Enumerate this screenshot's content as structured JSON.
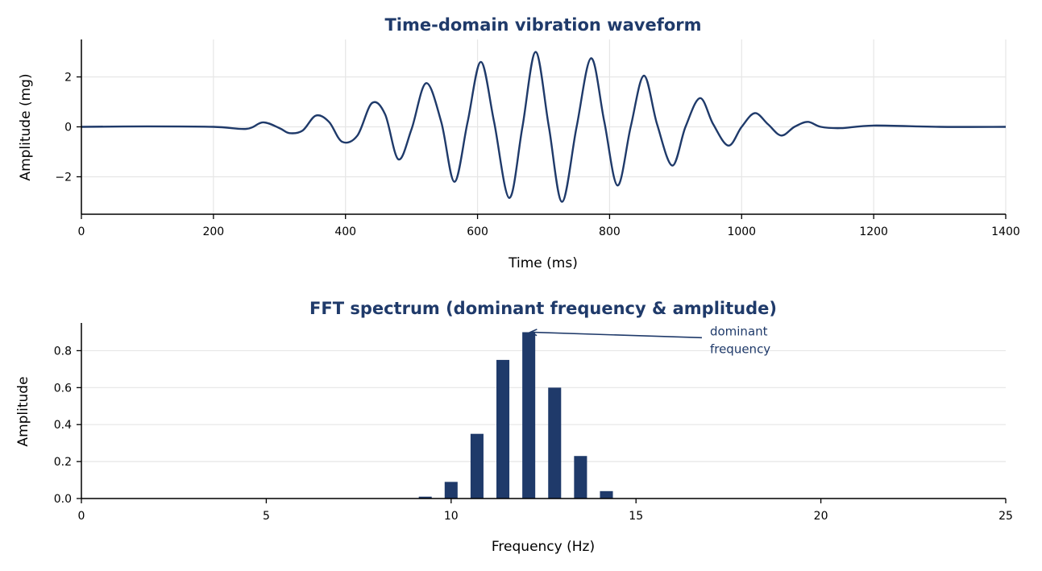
{
  "colors": {
    "primary": "#1f3a6a"
  },
  "chart_data": [
    {
      "type": "line",
      "title": "Time-domain vibration waveform",
      "xlabel": "Time (ms)",
      "ylabel": "Amplitude (mg)",
      "xlim": [
        0,
        1400
      ],
      "ylim": [
        -3.5,
        3.5
      ],
      "xticks": [
        0,
        200,
        400,
        600,
        800,
        1000,
        1200,
        1400
      ],
      "yticks": [
        -2,
        0,
        2
      ],
      "xtick_labels": [
        "0",
        "200",
        "400",
        "600",
        "800",
        "1000",
        "1200",
        "1400"
      ],
      "ytick_labels": [
        "−2",
        "0",
        "2"
      ],
      "grid": true,
      "series": [
        {
          "x": [
            0,
            100,
            200,
            250,
            275,
            300,
            315,
            335,
            355,
            375,
            395,
            418,
            440,
            460,
            480,
            500,
            522,
            545,
            565,
            585,
            605,
            625,
            648,
            668,
            688,
            708,
            728,
            750,
            772,
            792,
            812,
            832,
            852,
            872,
            895,
            915,
            937,
            957,
            980,
            1000,
            1020,
            1040,
            1060,
            1080,
            1100,
            1120,
            1150,
            1200,
            1300,
            1400
          ],
          "y": [
            0.0,
            0.02,
            0.0,
            -0.08,
            0.18,
            -0.05,
            -0.25,
            -0.15,
            0.45,
            0.2,
            -0.6,
            -0.35,
            0.95,
            0.5,
            -1.3,
            -0.1,
            1.75,
            0.2,
            -2.2,
            0.2,
            2.6,
            0.2,
            -2.85,
            0.0,
            3.0,
            0.0,
            -3.0,
            0.0,
            2.75,
            0.2,
            -2.35,
            0.0,
            2.05,
            0.1,
            -1.55,
            0.0,
            1.15,
            0.1,
            -0.75,
            0.0,
            0.55,
            0.1,
            -0.35,
            0.0,
            0.2,
            0.0,
            -0.05,
            0.05,
            0.0,
            0.0
          ]
        }
      ]
    },
    {
      "type": "bar",
      "title": "FFT spectrum  (dominant frequency & amplitude)",
      "xlabel": "Frequency (Hz)",
      "ylabel": "Amplitude",
      "xlim": [
        0,
        25
      ],
      "ylim": [
        0,
        0.95
      ],
      "xticks": [
        0,
        5,
        10,
        15,
        20,
        25
      ],
      "yticks": [
        0.0,
        0.2,
        0.4,
        0.6,
        0.8
      ],
      "xtick_labels": [
        "0",
        "5",
        "10",
        "15",
        "20",
        "25"
      ],
      "ytick_labels": [
        "0.0",
        "0.2",
        "0.4",
        "0.6",
        "0.8"
      ],
      "grid": true,
      "bar_width": 0.35,
      "x": [
        9.3,
        10.0,
        10.7,
        11.4,
        12.1,
        12.8,
        13.5,
        14.2
      ],
      "values": [
        0.01,
        0.09,
        0.35,
        0.75,
        0.9,
        0.6,
        0.23,
        0.04
      ],
      "annotations": [
        {
          "text_lines": [
            "dominant",
            "frequency"
          ],
          "target_x": 12.1,
          "target_y": 0.9,
          "text_x": 17.0,
          "text_y": 0.87
        }
      ]
    }
  ]
}
